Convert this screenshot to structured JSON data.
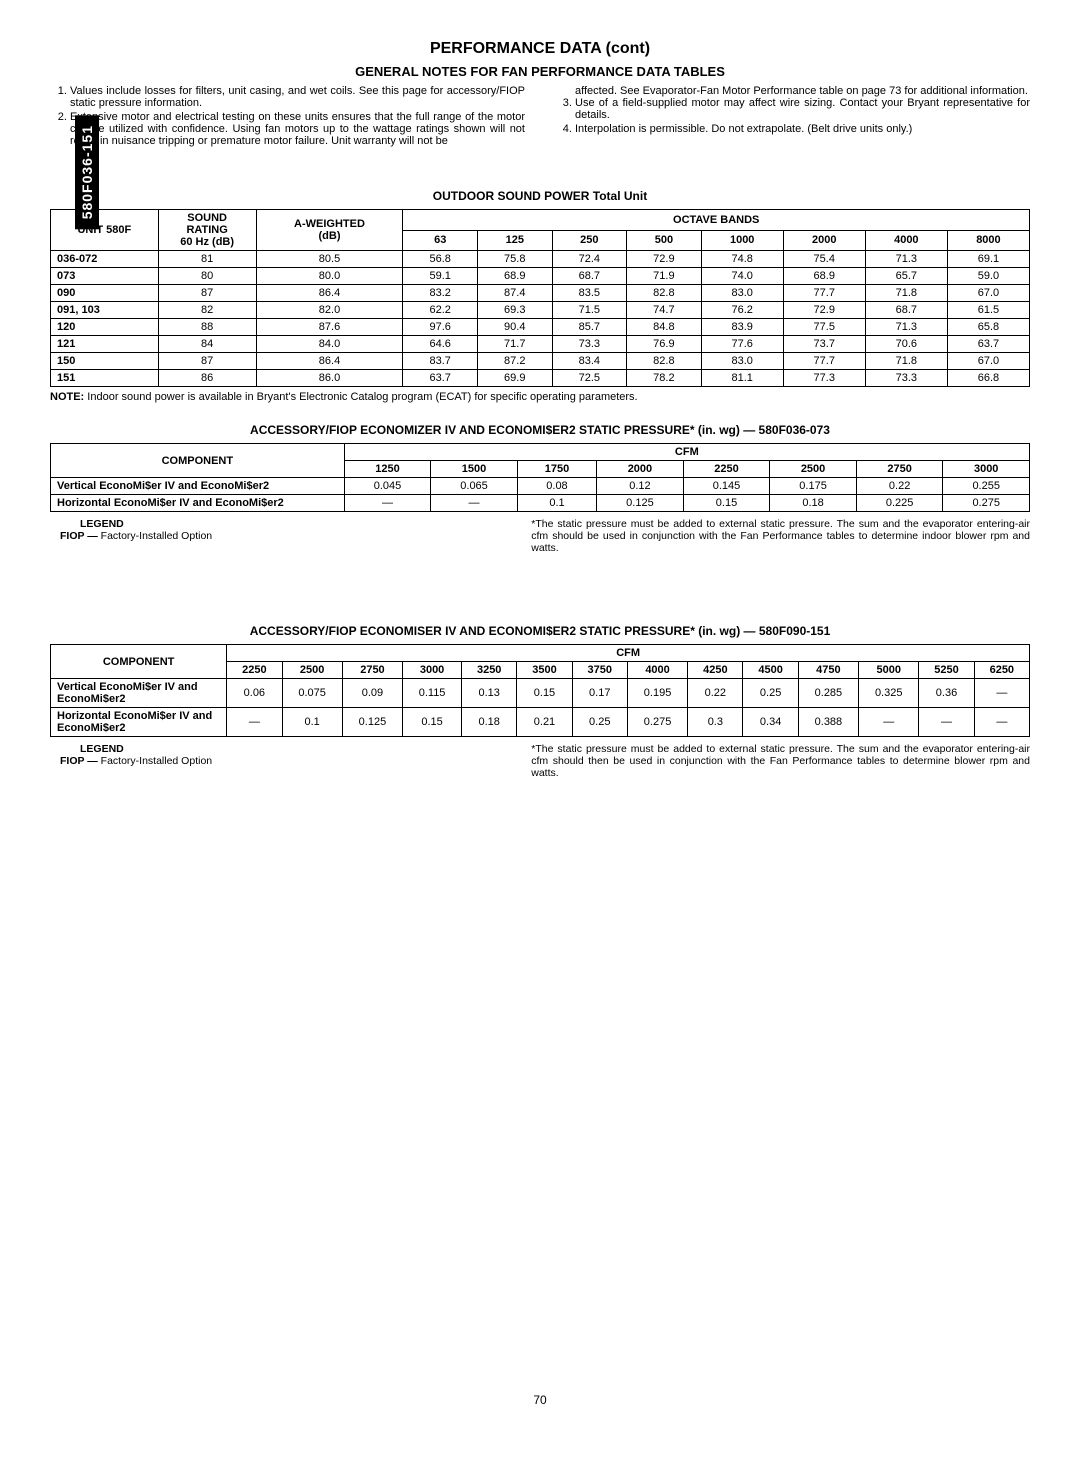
{
  "sideTab": "580F036-151",
  "pageTitle": "PERFORMANCE DATA (cont)",
  "subtitle": "GENERAL NOTES FOR FAN PERFORMANCE DATA TABLES",
  "notes": {
    "leftStart": [
      "Values include losses for filters, unit casing, and wet coils. See this page for accessory/FIOP static pressure information.",
      "Extensive motor and electrical testing on these units ensures that the full range of the motor can be utilized with confidence. Using fan motors up to the wattage ratings shown will not result in nuisance tripping or premature motor failure. Unit warranty will not be"
    ],
    "rightCont": "affected. See Evaporator-Fan Motor Performance table on page 73 for additional information.",
    "rightItems": [
      "Use of a field-supplied motor may affect wire sizing. Contact your Bryant representative for details.",
      "Interpolation is permissible. Do not extrapolate. (Belt drive units only.)"
    ]
  },
  "soundTable": {
    "title": "OUTDOOR SOUND POWER Total Unit",
    "hdr": {
      "unit": "UNIT 580F",
      "sound": "SOUND RATING 60 Hz (dB)",
      "aw": "A-WEIGHTED (dB)",
      "octave": "OCTAVE BANDS",
      "bands": [
        "63",
        "125",
        "250",
        "500",
        "1000",
        "2000",
        "4000",
        "8000"
      ]
    },
    "rows": [
      {
        "u": "036-072",
        "s": "81",
        "a": "80.5",
        "b": [
          "56.8",
          "75.8",
          "72.4",
          "72.9",
          "74.8",
          "75.4",
          "71.3",
          "69.1"
        ]
      },
      {
        "u": "073",
        "s": "80",
        "a": "80.0",
        "b": [
          "59.1",
          "68.9",
          "68.7",
          "71.9",
          "74.0",
          "68.9",
          "65.7",
          "59.0"
        ]
      },
      {
        "u": "090",
        "s": "87",
        "a": "86.4",
        "b": [
          "83.2",
          "87.4",
          "83.5",
          "82.8",
          "83.0",
          "77.7",
          "71.8",
          "67.0"
        ]
      },
      {
        "u": "091, 103",
        "s": "82",
        "a": "82.0",
        "b": [
          "62.2",
          "69.3",
          "71.5",
          "74.7",
          "76.2",
          "72.9",
          "68.7",
          "61.5"
        ]
      },
      {
        "u": "120",
        "s": "88",
        "a": "87.6",
        "b": [
          "97.6",
          "90.4",
          "85.7",
          "84.8",
          "83.9",
          "77.5",
          "71.3",
          "65.8"
        ]
      },
      {
        "u": "121",
        "s": "84",
        "a": "84.0",
        "b": [
          "64.6",
          "71.7",
          "73.3",
          "76.9",
          "77.6",
          "73.7",
          "70.6",
          "63.7"
        ]
      },
      {
        "u": "150",
        "s": "87",
        "a": "86.4",
        "b": [
          "83.7",
          "87.2",
          "83.4",
          "82.8",
          "83.0",
          "77.7",
          "71.8",
          "67.0"
        ]
      },
      {
        "u": "151",
        "s": "86",
        "a": "86.0",
        "b": [
          "63.7",
          "69.9",
          "72.5",
          "78.2",
          "81.1",
          "77.3",
          "73.3",
          "66.8"
        ]
      }
    ],
    "note": "NOTE: Indoor sound power is available in Bryant's Electronic Catalog program (ECAT) for specific operating parameters."
  },
  "econ1": {
    "title": "ACCESSORY/FIOP ECONOMIZER IV AND ECONOMI$ER2 STATIC PRESSURE* (in. wg) — 580F036-073",
    "hdr": {
      "comp": "COMPONENT",
      "cfm": "CFM",
      "cols": [
        "1250",
        "1500",
        "1750",
        "2000",
        "2250",
        "2500",
        "2750",
        "3000"
      ]
    },
    "rows": [
      {
        "c": "Vertical EconoMi$er IV and EconoMi$er2",
        "v": [
          "0.045",
          "0.065",
          "0.08",
          "0.12",
          "0.145",
          "0.175",
          "0.22",
          "0.255"
        ]
      },
      {
        "c": "Horizontal EconoMi$er IV and EconoMi$er2",
        "v": [
          "—",
          "—",
          "0.1",
          "0.125",
          "0.15",
          "0.18",
          "0.225",
          "0.275"
        ]
      }
    ]
  },
  "econ2": {
    "title": "ACCESSORY/FIOP ECONOMISER IV AND ECONOMI$ER2 STATIC PRESSURE* (in. wg) — 580F090-151",
    "hdr": {
      "comp": "COMPONENT",
      "cfm": "CFM",
      "cols": [
        "2250",
        "2500",
        "2750",
        "3000",
        "3250",
        "3500",
        "3750",
        "4000",
        "4250",
        "4500",
        "4750",
        "5000",
        "5250",
        "6250"
      ]
    },
    "rows": [
      {
        "c": "Vertical EconoMi$er IV and EconoMi$er2",
        "v": [
          "0.06",
          "0.075",
          "0.09",
          "0.115",
          "0.13",
          "0.15",
          "0.17",
          "0.195",
          "0.22",
          "0.25",
          "0.285",
          "0.325",
          "0.36",
          "—"
        ]
      },
      {
        "c": "Horizontal EconoMi$er IV and EconoMi$er2",
        "v": [
          "—",
          "0.1",
          "0.125",
          "0.15",
          "0.18",
          "0.21",
          "0.25",
          "0.275",
          "0.3",
          "0.34",
          "0.388",
          "—",
          "—",
          "—"
        ]
      }
    ]
  },
  "legend": {
    "title": "LEGEND",
    "fiopLabel": "FIOP —",
    "fiopText": "Factory-Installed Option",
    "foot1": "*The static pressure must be added to external static pressure. The sum and the evaporator entering-air cfm should be used in conjunction with the Fan Performance tables to determine indoor blower rpm and watts.",
    "foot2": "*The static pressure must be added to external static pressure. The sum and the evaporator entering-air cfm should then be used in conjunction with the Fan Performance tables to determine blower rpm and watts."
  },
  "pageNum": "70"
}
